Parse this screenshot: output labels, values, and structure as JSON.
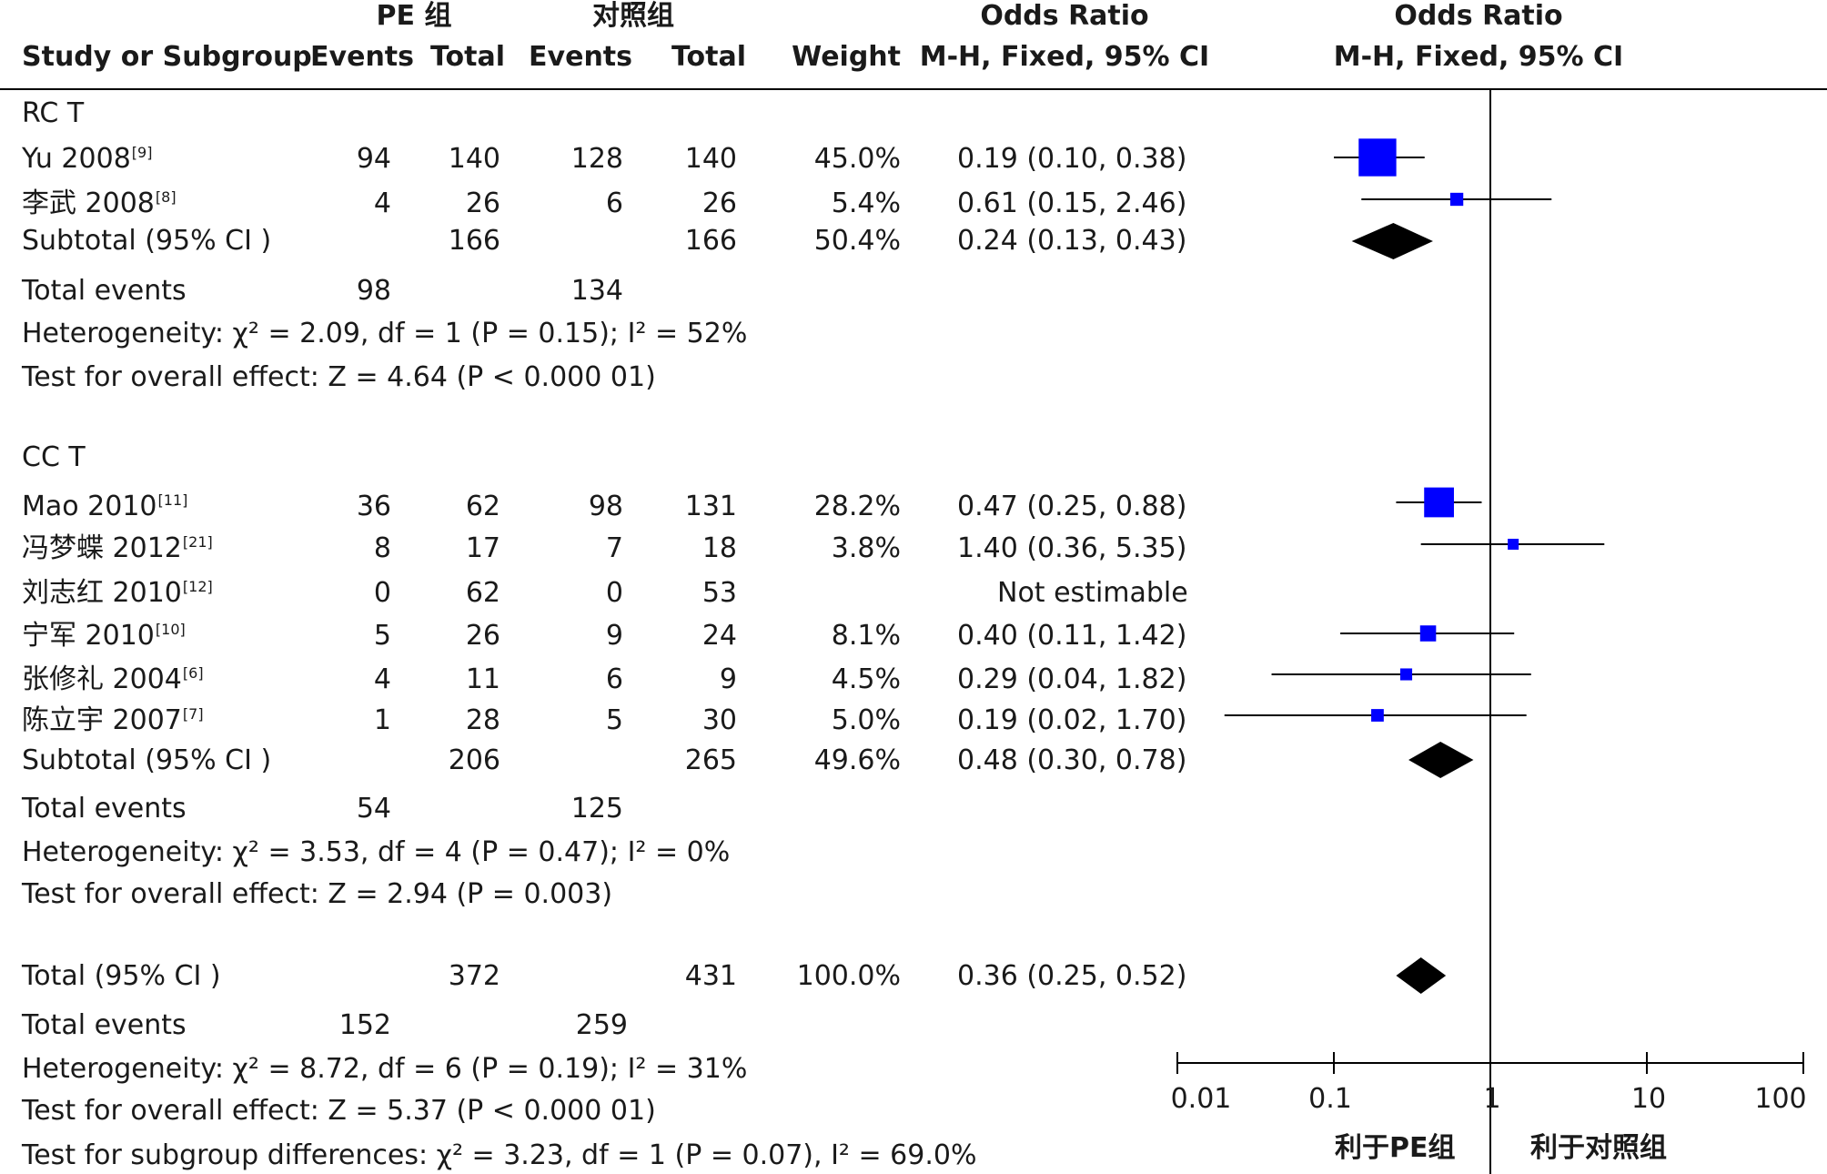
{
  "header": {
    "group_pe": "PE 组",
    "group_ctrl": "对照组",
    "col_study": "Study or Subgroup",
    "col_events_pe": "Events",
    "col_total_pe": "Total",
    "col_events_ctrl": "Events",
    "col_total_ctrl": "Total",
    "col_weight": "Weight",
    "col_or": "Odds Ratio",
    "col_or_method": "M-H, Fixed, 95% CI",
    "col_plot": "Odds Ratio",
    "col_plot_method": "M-H, Fixed, 95% CI"
  },
  "subgroups": [
    {
      "name": "RC T",
      "studies": [
        {
          "name": "Yu 2008",
          "ref": "[9]",
          "e1": "94",
          "t1": "140",
          "e2": "128",
          "t2": "140",
          "weight": "45.0%",
          "or_text": "0.19 (0.10, 0.38)"
        },
        {
          "name": "李武 2008",
          "ref": "[8]",
          "e1": "4",
          "t1": "26",
          "e2": "6",
          "t2": "26",
          "weight": "5.4%",
          "or_text": "0.61 (0.15, 2.46)"
        }
      ],
      "subtotal": {
        "label": "Subtotal (95% CI )",
        "t1": "166",
        "t2": "166",
        "weight": "50.4%",
        "or_text": "0.24 (0.13, 0.43)"
      },
      "total_events": {
        "label": "Total events",
        "e1": "98",
        "e2": "134"
      },
      "heterogeneity": "Heterogeneity: χ² = 2.09, df = 1 (P = 0.15); I² = 52%",
      "overall_effect": "Test for overall effect: Z = 4.64 (P < 0.000 01)"
    },
    {
      "name": "CC T",
      "studies": [
        {
          "name": "Mao 2010",
          "ref": "[11]",
          "e1": "36",
          "t1": "62",
          "e2": "98",
          "t2": "131",
          "weight": "28.2%",
          "or_text": "0.47 (0.25, 0.88)"
        },
        {
          "name": "冯梦蝶 2012",
          "ref": "[21]",
          "e1": "8",
          "t1": "17",
          "e2": "7",
          "t2": "18",
          "weight": "3.8%",
          "or_text": "1.40 (0.36, 5.35)"
        },
        {
          "name": "刘志红 2010",
          "ref": "[12]",
          "e1": "0",
          "t1": "62",
          "e2": "0",
          "t2": "53",
          "weight": "",
          "or_text": "Not estimable"
        },
        {
          "name": "宁军 2010",
          "ref": "[10]",
          "e1": "5",
          "t1": "26",
          "e2": "9",
          "t2": "24",
          "weight": "8.1%",
          "or_text": "0.40 (0.11, 1.42)"
        },
        {
          "name": "张修礼 2004",
          "ref": "[6]",
          "e1": "4",
          "t1": "11",
          "e2": "6",
          "t2": "9",
          "weight": "4.5%",
          "or_text": "0.29 (0.04, 1.82)"
        },
        {
          "name": "陈立宇 2007",
          "ref": "[7]",
          "e1": "1",
          "t1": "28",
          "e2": "5",
          "t2": "30",
          "weight": "5.0%",
          "or_text": "0.19 (0.02, 1.70)"
        }
      ],
      "subtotal": {
        "label": "Subtotal (95% CI )",
        "t1": "206",
        "t2": "265",
        "weight": "49.6%",
        "or_text": "0.48 (0.30, 0.78)"
      },
      "total_events": {
        "label": "Total events",
        "e1": "54",
        "e2": "125"
      },
      "heterogeneity": "Heterogeneity: χ² = 3.53, df = 4 (P = 0.47); I² = 0%",
      "overall_effect": "Test for overall effect: Z = 2.94 (P = 0.003)"
    }
  ],
  "overall": {
    "label": "Total (95% CI )",
    "t1": "372",
    "t2": "431",
    "weight": "100.0%",
    "or_text": "0.36 (0.25, 0.52)",
    "total_events_label": "Total events",
    "e1": "152",
    "e2": "259",
    "heterogeneity": "Heterogeneity: χ² = 8.72, df = 6 (P = 0.19); I² = 31%",
    "overall_effect": "Test for overall effect: Z = 5.37 (P < 0.000 01)",
    "subgroup_diff": "Test for subgroup differences: χ² = 3.23, df = 1 (P = 0.07), I² = 69.0%"
  },
  "axis": {
    "ticks": [
      "0.01",
      "0.1",
      "1",
      "10",
      "100"
    ],
    "favours_left": "利于PE组",
    "favours_right": "利于对照组"
  },
  "colors": {
    "marker": "#0000ff",
    "diamond": "#000000",
    "line": "#000000"
  },
  "chart_data": {
    "type": "forest",
    "scale": "log",
    "xlim": [
      0.01,
      100
    ],
    "null_line": 1,
    "studies": [
      {
        "name": "Yu 2008",
        "or": 0.19,
        "lo": 0.1,
        "hi": 0.38,
        "weight": 45.0
      },
      {
        "name": "李武 2008",
        "or": 0.61,
        "lo": 0.15,
        "hi": 2.46,
        "weight": 5.4
      },
      {
        "name": "Mao 2010",
        "or": 0.47,
        "lo": 0.25,
        "hi": 0.88,
        "weight": 28.2
      },
      {
        "name": "冯梦蝶 2012",
        "or": 1.4,
        "lo": 0.36,
        "hi": 5.35,
        "weight": 3.8
      },
      {
        "name": "宁军 2010",
        "or": 0.4,
        "lo": 0.11,
        "hi": 1.42,
        "weight": 8.1
      },
      {
        "name": "张修礼 2004",
        "or": 0.29,
        "lo": 0.04,
        "hi": 1.82,
        "weight": 4.5
      },
      {
        "name": "陈立宇 2007",
        "or": 0.19,
        "lo": 0.02,
        "hi": 1.7,
        "weight": 5.0
      }
    ],
    "diamonds": [
      {
        "name": "Subtotal RC T",
        "or": 0.24,
        "lo": 0.13,
        "hi": 0.43
      },
      {
        "name": "Subtotal CC T",
        "or": 0.48,
        "lo": 0.3,
        "hi": 0.78
      },
      {
        "name": "Total",
        "or": 0.36,
        "lo": 0.25,
        "hi": 0.52
      }
    ]
  }
}
